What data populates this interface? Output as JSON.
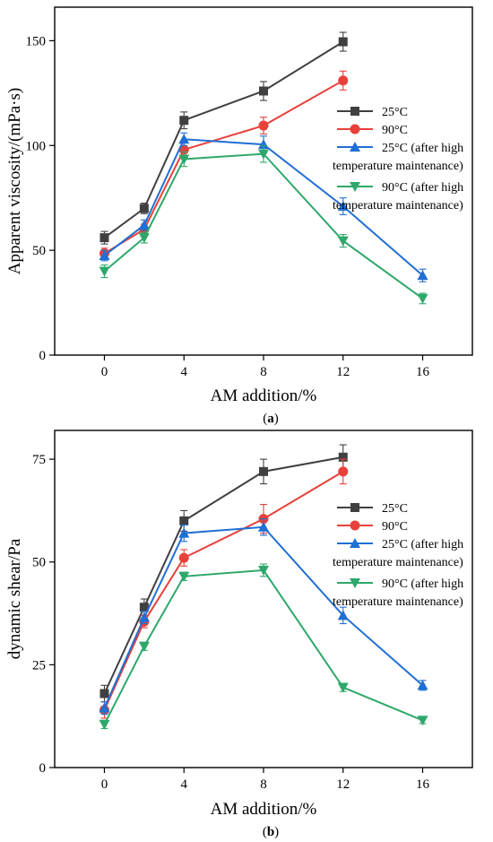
{
  "chart_data": [
    {
      "type": "line",
      "caption": "(a)",
      "xlabel": "AM addition/%",
      "ylabel": "Apparent viscosity/(mPa·s)",
      "xlim": [
        -2.5,
        18.5
      ],
      "ylim": [
        0,
        166
      ],
      "xticks": [
        0,
        4,
        8,
        12,
        16
      ],
      "yticks": [
        0,
        50,
        100,
        150
      ],
      "grid": false,
      "legend_position": "right",
      "series": [
        {
          "name": "25°C",
          "color": "#404040",
          "marker": "square",
          "x": [
            0,
            2,
            4,
            8,
            12
          ],
          "y": [
            56,
            70,
            112,
            126,
            149.5
          ],
          "error": [
            3,
            2.5,
            4,
            4.5,
            4.5
          ]
        },
        {
          "name": "90°C",
          "color": "#e8403a",
          "marker": "circle",
          "x": [
            0,
            2,
            4,
            8,
            12
          ],
          "y": [
            48.5,
            60,
            98,
            109.5,
            131
          ],
          "error": [
            2.5,
            2.5,
            4,
            4,
            4.5
          ]
        },
        {
          "name": "25°C (after high temperature maintenance)",
          "color": "#1f6fd4",
          "marker": "triangle-up",
          "x": [
            0,
            2,
            4,
            8,
            12,
            16
          ],
          "y": [
            47.5,
            62,
            103,
            100.5,
            71,
            38
          ],
          "error": [
            2.5,
            2.5,
            3,
            4,
            4,
            3
          ]
        },
        {
          "name": "90°C (after high temperature maintenance)",
          "color": "#2ea86a",
          "marker": "triangle-down",
          "x": [
            0,
            2,
            4,
            8,
            12,
            16
          ],
          "y": [
            40,
            56,
            93.5,
            96,
            54.5,
            27
          ],
          "error": [
            3,
            2.5,
            3.5,
            4,
            3,
            2.5
          ]
        }
      ]
    },
    {
      "type": "line",
      "caption": "(b)",
      "xlabel": "AM addition/%",
      "ylabel": "dynamic shear/Pa",
      "xlim": [
        -2.5,
        18.5
      ],
      "ylim": [
        0,
        82
      ],
      "xticks": [
        0,
        4,
        8,
        12,
        16
      ],
      "yticks": [
        0,
        25,
        50,
        75
      ],
      "grid": false,
      "legend_position": "right",
      "series": [
        {
          "name": "25°C",
          "color": "#404040",
          "marker": "square",
          "x": [
            0,
            2,
            4,
            8,
            12
          ],
          "y": [
            18,
            39,
            60,
            72,
            75.5
          ],
          "error": [
            2,
            2,
            2.5,
            3,
            3
          ]
        },
        {
          "name": "90°C",
          "color": "#e8403a",
          "marker": "circle",
          "x": [
            0,
            2,
            4,
            8,
            12
          ],
          "y": [
            14,
            35.5,
            51,
            60.5,
            72
          ],
          "error": [
            2,
            1.5,
            2,
            3.5,
            3
          ]
        },
        {
          "name": "25°C (after high temperature maintenance)",
          "color": "#1f6fd4",
          "marker": "triangle-up",
          "x": [
            0,
            2,
            4,
            8,
            12,
            16
          ],
          "y": [
            14.5,
            36.5,
            57,
            58.5,
            37,
            20
          ],
          "error": [
            1.5,
            1.5,
            2,
            2,
            2,
            1.2
          ]
        },
        {
          "name": "90°C (after high temperature maintenance)",
          "color": "#2ea86a",
          "marker": "triangle-down",
          "x": [
            0,
            2,
            4,
            8,
            12,
            16
          ],
          "y": [
            10.5,
            29.5,
            46.5,
            48,
            19.5,
            11.5
          ],
          "error": [
            1,
            1,
            1,
            1.5,
            1,
            0.8
          ]
        }
      ]
    }
  ]
}
